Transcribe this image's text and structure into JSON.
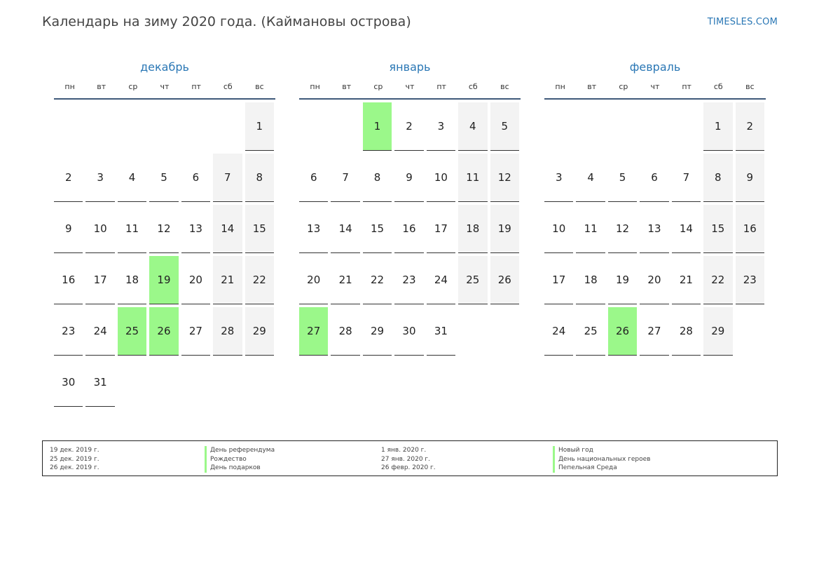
{
  "title": "Календарь на зиму 2020 года. (Каймановы острова)",
  "site": "TIMESLES.COM",
  "weekdays": [
    "пн",
    "вт",
    "ср",
    "чт",
    "пт",
    "сб",
    "вс"
  ],
  "colors": {
    "accent": "#2a77b5",
    "holiday": "#9bf88a",
    "weekend": "#f3f3f3",
    "header_rule": "#3f5a7a"
  },
  "months": [
    {
      "name": "декабрь",
      "offset": 6,
      "days": 31,
      "holidays": [
        19,
        25,
        26
      ]
    },
    {
      "name": "январь",
      "offset": 2,
      "days": 31,
      "holidays": [
        1,
        27
      ]
    },
    {
      "name": "февраль",
      "offset": 5,
      "days": 29,
      "holidays": [
        26
      ]
    }
  ],
  "holidays_list": [
    {
      "date": "19 дек. 2019 г.",
      "name": "День референдума"
    },
    {
      "date": "25 дек. 2019 г.",
      "name": "Рождество"
    },
    {
      "date": "26 дек. 2019 г.",
      "name": "День подарков"
    },
    {
      "date": "1 янв. 2020 г.",
      "name": "Новый год"
    },
    {
      "date": "27 янв. 2020 г.",
      "name": "День национальных героев"
    },
    {
      "date": "26 февр. 2020 г.",
      "name": "Пепельная Среда"
    }
  ]
}
